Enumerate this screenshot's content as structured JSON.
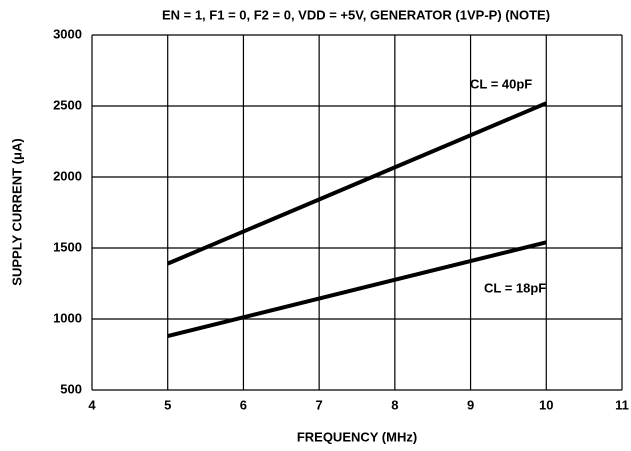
{
  "chart_data": {
    "type": "line",
    "title": "EN = 1, F1 = 0, F2 = 0, VDD = +5V, GENERATOR (1VP-P) (NOTE)",
    "x_label": "FREQUENCY (MHz)",
    "y_label": "SUPPLY CURRENT (μA)",
    "x": [
      5,
      10
    ],
    "series": [
      {
        "name": "CL = 40pF",
        "color": "#000000",
        "values": [
          1390,
          2520
        ]
      },
      {
        "name": "CL = 18pF",
        "color": "#000000",
        "values": [
          880,
          1540
        ]
      }
    ],
    "xlim": [
      4,
      11
    ],
    "xticks": [
      4,
      5,
      6,
      7,
      8,
      9,
      10,
      11
    ],
    "ylim": [
      500,
      3000
    ],
    "yticks": [
      500,
      1000,
      1500,
      2000,
      2500,
      3000
    ],
    "grid": true
  }
}
